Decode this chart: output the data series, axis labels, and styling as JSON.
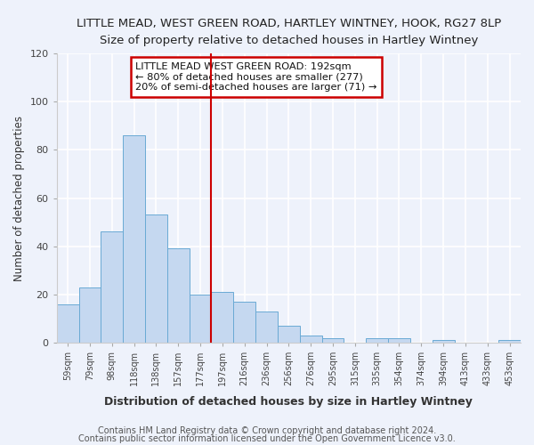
{
  "title": "LITTLE MEAD, WEST GREEN ROAD, HARTLEY WINTNEY, HOOK, RG27 8LP",
  "subtitle": "Size of property relative to detached houses in Hartley Wintney",
  "xlabel": "Distribution of detached houses by size in Hartley Wintney",
  "ylabel": "Number of detached properties",
  "categories": [
    "59sqm",
    "79sqm",
    "98sqm",
    "118sqm",
    "138sqm",
    "157sqm",
    "177sqm",
    "197sqm",
    "216sqm",
    "236sqm",
    "256sqm",
    "276sqm",
    "295sqm",
    "315sqm",
    "335sqm",
    "354sqm",
    "374sqm",
    "394sqm",
    "413sqm",
    "433sqm",
    "453sqm"
  ],
  "values": [
    16,
    23,
    46,
    86,
    53,
    39,
    20,
    21,
    17,
    13,
    7,
    3,
    2,
    0,
    2,
    2,
    0,
    1,
    0,
    0,
    1
  ],
  "bar_color": "#c5d8f0",
  "bar_edge_color": "#6aaad4",
  "vline_color": "#cc0000",
  "ylim": [
    0,
    120
  ],
  "yticks": [
    0,
    20,
    40,
    60,
    80,
    100,
    120
  ],
  "annotation_title": "LITTLE MEAD WEST GREEN ROAD: 192sqm",
  "annotation_line1": "← 80% of detached houses are smaller (277)",
  "annotation_line2": "20% of semi-detached houses are larger (71) →",
  "annotation_box_color": "#ffffff",
  "annotation_box_edge": "#cc0000",
  "footnote1": "Contains HM Land Registry data © Crown copyright and database right 2024.",
  "footnote2": "Contains public sector information licensed under the Open Government Licence v3.0.",
  "background_color": "#eef2fb",
  "grid_color": "#ffffff",
  "title_fontsize": 9.5,
  "subtitle_fontsize": 8.5,
  "xlabel_fontsize": 9,
  "ylabel_fontsize": 8.5,
  "footnote_fontsize": 7
}
